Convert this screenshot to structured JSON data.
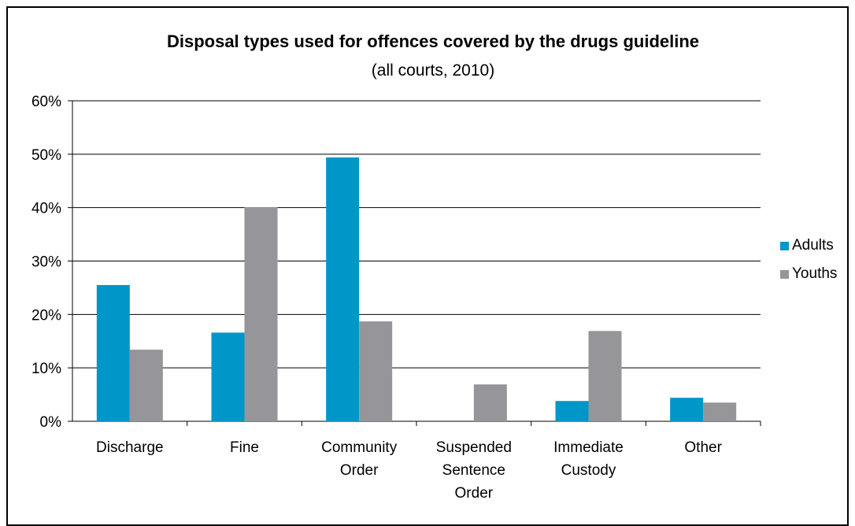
{
  "chart_data": {
    "type": "bar",
    "title": "Disposal types used for offences covered by the drugs guideline",
    "subtitle": "(all courts, 2010)",
    "categories": [
      "Discharge",
      "Fine",
      "Community Order",
      "Suspended Sentence Order",
      "Immediate Custody",
      "Other"
    ],
    "category_lines": [
      [
        "Discharge"
      ],
      [
        "Fine"
      ],
      [
        "Community",
        "Order"
      ],
      [
        "Suspended",
        "Sentence",
        "Order"
      ],
      [
        "Immediate",
        "Custody"
      ],
      [
        "Other"
      ]
    ],
    "series": [
      {
        "name": "Adults",
        "color": "#0096c8",
        "values": [
          25.5,
          16.6,
          49.4,
          0,
          3.8,
          4.4
        ]
      },
      {
        "name": "Youths",
        "color": "#96969a",
        "values": [
          13.4,
          40.1,
          18.7,
          6.9,
          16.9,
          3.5
        ]
      }
    ],
    "y_ticks": [
      "0%",
      "10%",
      "20%",
      "30%",
      "40%",
      "50%",
      "60%"
    ],
    "ylim": [
      0,
      60
    ],
    "grid": true,
    "legend_position": "right"
  }
}
